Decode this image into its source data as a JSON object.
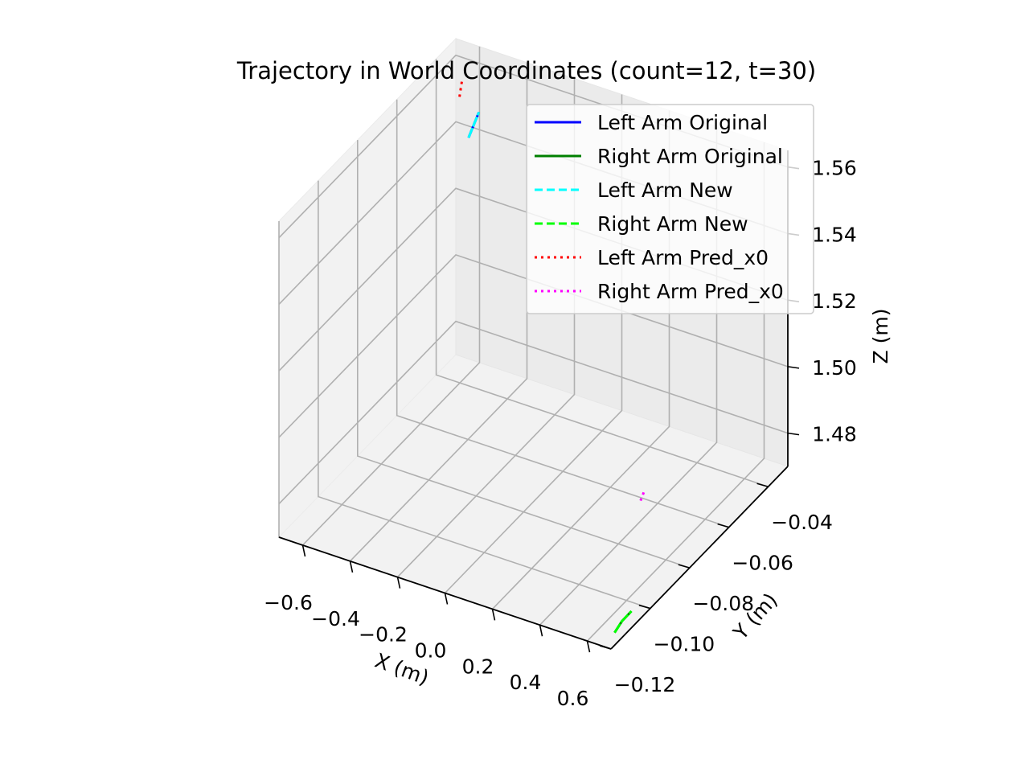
{
  "chart_data": {
    "type": "line3d",
    "title": "Trajectory in World Coordinates (count=12, t=30)",
    "xlabel": "X (m)",
    "ylabel": "Y (m)",
    "zlabel": "Z (m)",
    "xlim": [
      -0.7,
      0.7
    ],
    "ylim": [
      -0.12,
      -0.03
    ],
    "zlim": [
      1.47,
      1.565
    ],
    "x_ticks": [
      "−0.6",
      "−0.4",
      "−0.2",
      "0.0",
      "0.2",
      "0.4",
      "0.6"
    ],
    "y_ticks": [
      "−0.12",
      "−0.10",
      "−0.08",
      "−0.06",
      "−0.04"
    ],
    "z_ticks": [
      "1.48",
      "1.50",
      "1.52",
      "1.54",
      "1.56"
    ],
    "grid": true,
    "legend_position": "upper right",
    "series": [
      {
        "name": "Left Arm Original",
        "color": "#0000ff",
        "style": "solid",
        "points": [
          [
            -0.52,
            -0.045,
            1.549
          ],
          [
            -0.5,
            -0.045,
            1.553
          ],
          [
            -0.48,
            -0.045,
            1.557
          ]
        ]
      },
      {
        "name": "Right Arm Original",
        "color": "#008000",
        "style": "solid",
        "points": [
          [
            0.66,
            -0.113,
            1.47
          ],
          [
            0.68,
            -0.112,
            1.473
          ],
          [
            0.7,
            -0.11,
            1.475
          ]
        ]
      },
      {
        "name": "Left Arm New",
        "color": "#00ffff",
        "style": "dashed",
        "points": [
          [
            -0.52,
            -0.045,
            1.549
          ],
          [
            -0.5,
            -0.045,
            1.553
          ],
          [
            -0.48,
            -0.045,
            1.557
          ]
        ]
      },
      {
        "name": "Right Arm New",
        "color": "#00ff00",
        "style": "dashed",
        "points": [
          [
            0.66,
            -0.113,
            1.47
          ],
          [
            0.68,
            -0.112,
            1.473
          ],
          [
            0.7,
            -0.11,
            1.475
          ]
        ]
      },
      {
        "name": "Left Arm Pred_x0",
        "color": "#ff0000",
        "style": "dotted",
        "points": [
          [
            -0.56,
            -0.045,
            1.56
          ],
          [
            -0.55,
            -0.045,
            1.565
          ]
        ]
      },
      {
        "name": "Right Arm Pred_x0",
        "color": "#ff00ff",
        "style": "dotted",
        "points": [
          [
            0.46,
            -0.076,
            1.482
          ],
          [
            0.47,
            -0.075,
            1.485
          ]
        ]
      }
    ]
  }
}
